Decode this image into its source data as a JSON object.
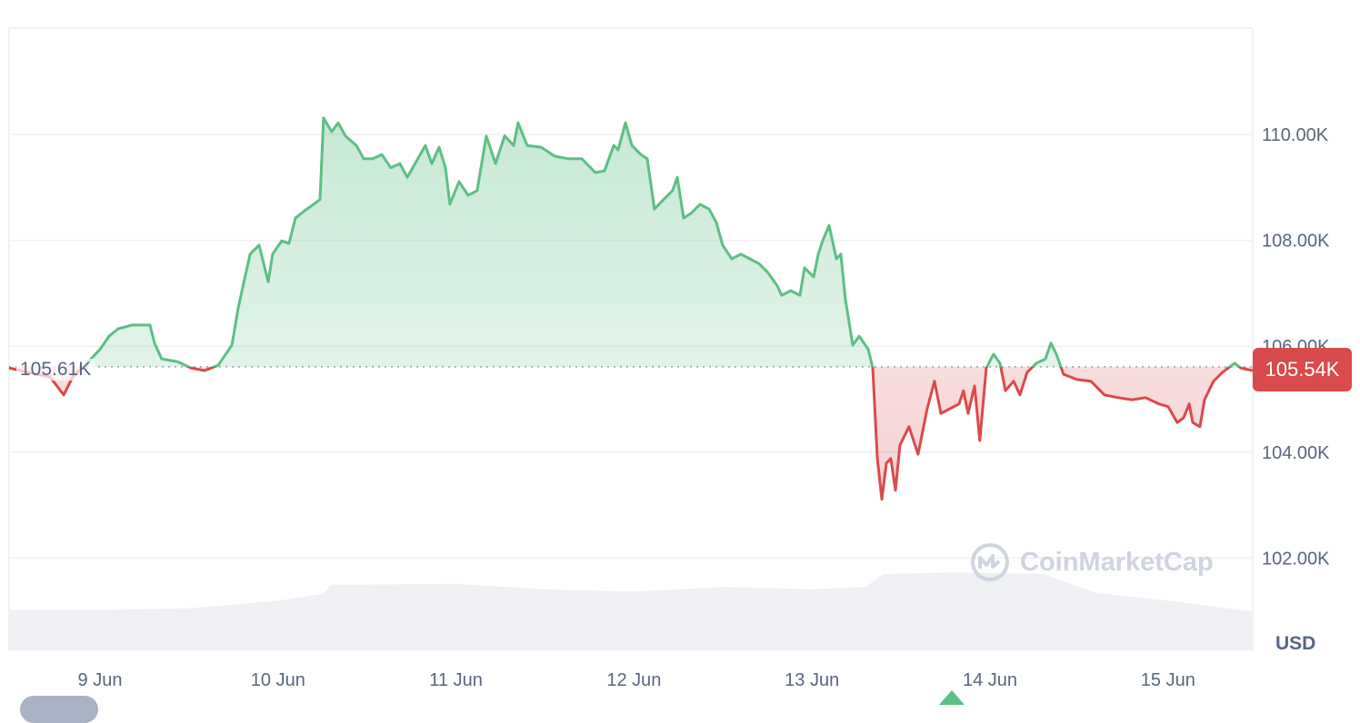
{
  "chart_data": {
    "type": "area",
    "currency_label": "USD",
    "open_price_label": "105.61K",
    "open_price": 105.61,
    "current_price_label": "105.54K",
    "current_price": 105.54,
    "watermark": "CoinMarketCap",
    "x_unit": "day of June",
    "x_ticks": [
      {
        "value": 9,
        "label": "9 Jun"
      },
      {
        "value": 10,
        "label": "10 Jun"
      },
      {
        "value": 11,
        "label": "11 Jun"
      },
      {
        "value": 12,
        "label": "12 Jun"
      },
      {
        "value": 13,
        "label": "13 Jun"
      },
      {
        "value": 14,
        "label": "14 Jun"
      },
      {
        "value": 15,
        "label": "15 Jun"
      }
    ],
    "y_ticks": [
      {
        "value": 102,
        "label": "102.00K"
      },
      {
        "value": 104,
        "label": "104.00K"
      },
      {
        "value": 106,
        "label": "106.00K"
      },
      {
        "value": 108,
        "label": "108.00K"
      },
      {
        "value": 110,
        "label": "110.00K"
      }
    ],
    "ylim": [
      100.2,
      111.9
    ],
    "xlim": [
      8.489,
      15.476
    ],
    "grid": true,
    "colors": {
      "up": "#5cbf85",
      "down": "#d94a4a",
      "volume": "#eef0f4",
      "grid": "#eff1f4",
      "axis_text": "#58667e"
    },
    "series": [
      {
        "x": [
          8.489,
          8.591,
          8.719,
          8.796,
          8.847,
          8.949,
          9.0,
          9.051,
          9.102,
          9.179,
          9.281,
          9.306,
          9.347,
          9.434,
          9.511,
          9.587,
          9.664,
          9.741,
          9.776,
          9.807,
          9.843,
          9.894,
          9.945,
          9.97,
          10.021,
          10.062,
          10.098,
          10.149,
          10.2,
          10.236,
          10.256,
          10.302,
          10.338,
          10.379,
          10.44,
          10.481,
          10.532,
          10.583,
          10.634,
          10.685,
          10.726,
          10.777,
          10.828,
          10.864,
          10.905,
          10.941,
          10.966,
          11.017,
          11.068,
          11.119,
          11.17,
          11.222,
          11.273,
          11.324,
          11.349,
          11.4,
          11.477,
          11.554,
          11.63,
          11.707,
          11.783,
          11.834,
          11.886,
          11.911,
          11.952,
          11.988,
          12.039,
          12.074,
          12.115,
          12.166,
          12.217,
          12.243,
          12.279,
          12.32,
          12.371,
          12.422,
          12.462,
          12.498,
          12.549,
          12.6,
          12.651,
          12.702,
          12.753,
          12.805,
          12.83,
          12.881,
          12.932,
          12.958,
          13.009,
          13.035,
          13.06,
          13.096,
          13.137,
          13.162,
          13.188,
          13.229,
          13.265,
          13.316,
          13.341,
          13.367,
          13.392,
          13.418,
          13.443,
          13.469,
          13.494,
          13.545,
          13.596,
          13.647,
          13.688,
          13.724,
          13.775,
          13.826,
          13.851,
          13.877,
          13.913,
          13.943,
          13.979,
          14.02,
          14.056,
          14.087,
          14.133,
          14.168,
          14.209,
          14.26,
          14.311,
          14.342,
          14.373,
          14.413,
          14.49,
          14.567,
          14.643,
          14.72,
          14.797,
          14.873,
          14.95,
          15.001,
          15.052,
          15.088,
          15.119,
          15.139,
          15.18,
          15.205,
          15.256,
          15.307,
          15.374,
          15.409,
          15.476
        ],
        "y": [
          105.59,
          105.51,
          105.42,
          105.08,
          105.42,
          105.76,
          105.94,
          106.19,
          106.33,
          106.4,
          106.4,
          106.06,
          105.76,
          105.71,
          105.59,
          105.54,
          105.64,
          106.02,
          106.71,
          107.19,
          107.74,
          107.91,
          107.22,
          107.74,
          107.99,
          107.94,
          108.42,
          108.56,
          108.68,
          108.77,
          110.31,
          110.05,
          110.22,
          109.97,
          109.79,
          109.54,
          109.54,
          109.62,
          109.37,
          109.45,
          109.19,
          109.49,
          109.79,
          109.45,
          109.76,
          109.37,
          108.68,
          109.11,
          108.85,
          108.94,
          109.97,
          109.45,
          109.97,
          109.79,
          110.22,
          109.79,
          109.76,
          109.59,
          109.54,
          109.54,
          109.28,
          109.31,
          109.79,
          109.71,
          110.22,
          109.79,
          109.62,
          109.54,
          108.59,
          108.77,
          108.94,
          109.19,
          108.42,
          108.51,
          108.68,
          108.59,
          108.34,
          107.91,
          107.65,
          107.74,
          107.65,
          107.56,
          107.39,
          107.14,
          106.96,
          107.05,
          106.96,
          107.48,
          107.31,
          107.74,
          107.99,
          108.28,
          107.65,
          107.74,
          106.88,
          106.02,
          106.19,
          105.94,
          105.59,
          103.88,
          103.11,
          103.79,
          103.88,
          103.28,
          104.13,
          104.48,
          103.96,
          104.82,
          105.34,
          104.73,
          104.82,
          104.91,
          105.16,
          104.73,
          105.25,
          104.22,
          105.59,
          105.85,
          105.68,
          105.16,
          105.34,
          105.08,
          105.51,
          105.68,
          105.76,
          106.06,
          105.85,
          105.47,
          105.37,
          105.34,
          105.08,
          105.03,
          104.99,
          105.03,
          104.91,
          104.86,
          104.56,
          104.65,
          104.91,
          104.56,
          104.48,
          104.99,
          105.34,
          105.51,
          105.68,
          105.59,
          105.54
        ]
      }
    ],
    "volume_relative": {
      "x": [
        8.489,
        9.0,
        9.5,
        9.75,
        10.0,
        10.25,
        10.3,
        11.0,
        11.5,
        12.0,
        12.5,
        13.0,
        13.3,
        13.4,
        13.8,
        14.3,
        14.6,
        15.0,
        15.476
      ],
      "y": [
        0.53,
        0.53,
        0.55,
        0.6,
        0.65,
        0.74,
        0.86,
        0.87,
        0.8,
        0.77,
        0.83,
        0.8,
        0.83,
        1.0,
        1.02,
        1.0,
        0.75,
        0.65,
        0.51
      ]
    }
  }
}
